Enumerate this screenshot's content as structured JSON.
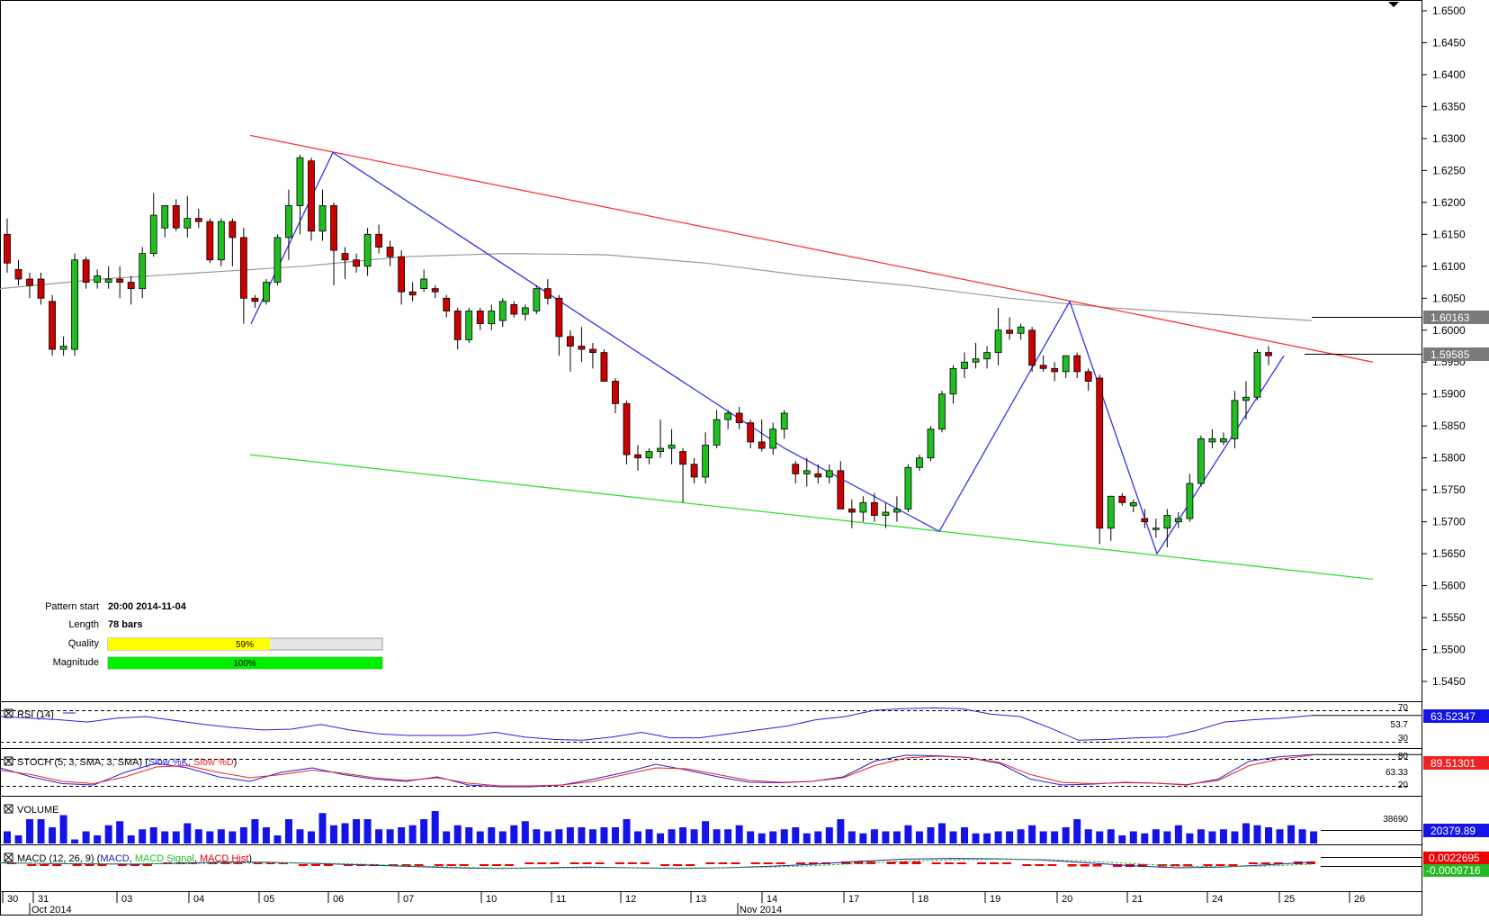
{
  "colors": {
    "bull": "#1fbf1f",
    "bear": "#cc0000",
    "resistance": "#ff3333",
    "support": "#33dd33",
    "zigzag": "#3333ee",
    "ma": "#999999",
    "price_label_bg": "#7a7a7a",
    "volume": "#1414e6",
    "macd_hist": "#ee0000",
    "rsi": "#2222dd",
    "stoch_k": "#2222dd",
    "stoch_d": "#ee2222",
    "macd_line": "#2222aa",
    "macd_signal": "#22bb22",
    "quality_fill": "#ffff00",
    "magnitude_fill": "#00ee00"
  },
  "info": {
    "pattern_start_label": "Pattern start",
    "pattern_start_value": "20:00 2014-11-04",
    "length_label": "Length",
    "length_value": "78 bars",
    "quality_label": "Quality",
    "quality_value": "59%",
    "quality_fraction": 0.59,
    "magnitude_label": "Magnitude",
    "magnitude_value": "100%",
    "magnitude_fraction": 1.0
  },
  "price_labels": {
    "ma_value": "1.60163",
    "last_value": "1.59585"
  },
  "panels": {
    "rsi": {
      "label": "RSI (14)",
      "level_high": "70",
      "level_mid": "53.7",
      "level_low": "30",
      "value": "63.52347"
    },
    "stoch": {
      "label_prefix": "STOCH (5, 3, SMA, 3, SMA) (",
      "k_label": "Slow %K",
      "sep": ", ",
      "d_label": "Slow %D",
      "suffix": ")",
      "level_high": "80",
      "level_mid": "63.33",
      "level_low": "20",
      "value": "89.51301"
    },
    "volume": {
      "label": "VOLUME",
      "axis_value": "38690",
      "value": "20379.89"
    },
    "macd": {
      "label_prefix": "MACD (12, 26, 9) (",
      "line_label": "MACD",
      "signal_label": "MACD Signal",
      "hist_label": "MACD Hist",
      "suffix": ")",
      "value1": "0.0022695",
      "value2": "-0.0009716"
    }
  },
  "chart_data": {
    "type": "candlestick",
    "instrument_axis": {
      "y_min": 1.54,
      "y_max": 1.65,
      "ticks": [
        "1.6500",
        "1.6450",
        "1.6400",
        "1.6350",
        "1.6300",
        "1.6250",
        "1.6200",
        "1.6150",
        "1.6100",
        "1.6050",
        "1.6000",
        "1.5950",
        "1.5900",
        "1.5850",
        "1.5800",
        "1.5750",
        "1.5700",
        "1.5650",
        "1.5600",
        "1.5550",
        "1.5500",
        "1.5450"
      ]
    },
    "x_day_labels": [
      "30",
      "31",
      "03",
      "04",
      "05",
      "06",
      "07",
      "10",
      "11",
      "12",
      "13",
      "14",
      "17",
      "18",
      "19",
      "20",
      "21",
      "24",
      "25",
      "26"
    ],
    "x_month_labels": [
      "Oct 2014",
      "Nov 2014"
    ],
    "candles": [
      [
        1.615,
        1.6175,
        1.609,
        1.6105
      ],
      [
        1.6095,
        1.611,
        1.607,
        1.608
      ],
      [
        1.608,
        1.609,
        1.605,
        1.607
      ],
      [
        1.608,
        1.609,
        1.604,
        1.605
      ],
      [
        1.6045,
        1.6055,
        1.596,
        1.597
      ],
      [
        1.597,
        1.599,
        1.596,
        1.5975
      ],
      [
        1.597,
        1.612,
        1.596,
        1.611
      ],
      [
        1.611,
        1.6115,
        1.6065,
        1.6075
      ],
      [
        1.6075,
        1.6095,
        1.6065,
        1.6085
      ],
      [
        1.6075,
        1.61,
        1.6065,
        1.608
      ],
      [
        1.608,
        1.61,
        1.605,
        1.6075
      ],
      [
        1.6075,
        1.6085,
        1.604,
        1.6065
      ],
      [
        1.6065,
        1.613,
        1.605,
        1.612
      ],
      [
        1.612,
        1.6215,
        1.6115,
        1.618
      ],
      [
        1.616,
        1.6195,
        1.6145,
        1.6195
      ],
      [
        1.6195,
        1.6205,
        1.6155,
        1.616
      ],
      [
        1.616,
        1.621,
        1.6145,
        1.6175
      ],
      [
        1.6175,
        1.619,
        1.616,
        1.617
      ],
      [
        1.617,
        1.6175,
        1.6105,
        1.611
      ],
      [
        1.611,
        1.6175,
        1.61,
        1.617
      ],
      [
        1.617,
        1.6175,
        1.61,
        1.6145
      ],
      [
        1.6145,
        1.616,
        1.601,
        1.605
      ],
      [
        1.605,
        1.6055,
        1.6035,
        1.6045
      ],
      [
        1.6045,
        1.608,
        1.604,
        1.6075
      ],
      [
        1.6075,
        1.615,
        1.607,
        1.6145
      ],
      [
        1.6145,
        1.622,
        1.611,
        1.6195
      ],
      [
        1.6195,
        1.6275,
        1.615,
        1.627
      ],
      [
        1.6265,
        1.627,
        1.614,
        1.6155
      ],
      [
        1.6155,
        1.622,
        1.614,
        1.6195
      ],
      [
        1.6195,
        1.62,
        1.607,
        1.6125
      ],
      [
        1.612,
        1.613,
        1.608,
        1.611
      ],
      [
        1.611,
        1.612,
        1.609,
        1.61
      ],
      [
        1.61,
        1.616,
        1.6085,
        1.615
      ],
      [
        1.615,
        1.6165,
        1.612,
        1.613
      ],
      [
        1.613,
        1.614,
        1.61,
        1.6115
      ],
      [
        1.6115,
        1.6125,
        1.604,
        1.606
      ],
      [
        1.606,
        1.6075,
        1.6045,
        1.6055
      ],
      [
        1.6065,
        1.6095,
        1.606,
        1.608
      ],
      [
        1.6065,
        1.607,
        1.605,
        1.606
      ],
      [
        1.605,
        1.6055,
        1.602,
        1.603
      ],
      [
        1.603,
        1.6035,
        1.597,
        1.5985
      ],
      [
        1.5985,
        1.6035,
        1.598,
        1.603
      ],
      [
        1.603,
        1.6035,
        1.6,
        1.601
      ],
      [
        1.601,
        1.604,
        1.6,
        1.603
      ],
      [
        1.6015,
        1.605,
        1.6005,
        1.6045
      ],
      [
        1.604,
        1.6045,
        1.602,
        1.6025
      ],
      [
        1.6025,
        1.604,
        1.6015,
        1.6035
      ],
      [
        1.603,
        1.607,
        1.6025,
        1.6065
      ],
      [
        1.6065,
        1.608,
        1.604,
        1.605
      ],
      [
        1.605,
        1.6055,
        1.596,
        1.599
      ],
      [
        1.599,
        1.6,
        1.5935,
        1.5975
      ],
      [
        1.5975,
        1.6005,
        1.595,
        1.597
      ],
      [
        1.597,
        1.598,
        1.594,
        1.5965
      ],
      [
        1.5965,
        1.597,
        1.592,
        1.592
      ],
      [
        1.592,
        1.5925,
        1.587,
        1.5885
      ],
      [
        1.5885,
        1.589,
        1.579,
        1.5805
      ],
      [
        1.5805,
        1.582,
        1.578,
        1.58
      ],
      [
        1.58,
        1.5815,
        1.579,
        1.581
      ],
      [
        1.581,
        1.586,
        1.58,
        1.5815
      ],
      [
        1.5815,
        1.5845,
        1.579,
        1.582
      ],
      [
        1.581,
        1.5815,
        1.573,
        1.579
      ],
      [
        1.579,
        1.58,
        1.576,
        1.577
      ],
      [
        1.577,
        1.584,
        1.576,
        1.582
      ],
      [
        1.582,
        1.5875,
        1.5815,
        1.586
      ],
      [
        1.586,
        1.5875,
        1.5845,
        1.587
      ],
      [
        1.587,
        1.588,
        1.5845,
        1.5855
      ],
      [
        1.5855,
        1.586,
        1.5815,
        1.5825
      ],
      [
        1.5825,
        1.586,
        1.581,
        1.5815
      ],
      [
        1.5815,
        1.5855,
        1.5805,
        1.5845
      ],
      [
        1.5845,
        1.5875,
        1.583,
        1.587
      ],
      [
        1.579,
        1.5795,
        1.576,
        1.5775
      ],
      [
        1.5775,
        1.58,
        1.5755,
        1.578
      ],
      [
        1.5775,
        1.579,
        1.576,
        1.577
      ],
      [
        1.577,
        1.579,
        1.576,
        1.578
      ],
      [
        1.578,
        1.5795,
        1.572,
        1.572
      ],
      [
        1.572,
        1.5735,
        1.569,
        1.5715
      ],
      [
        1.5715,
        1.574,
        1.57,
        1.573
      ],
      [
        1.573,
        1.5745,
        1.57,
        1.571
      ],
      [
        1.571,
        1.573,
        1.569,
        1.5715
      ],
      [
        1.5715,
        1.574,
        1.57,
        1.572
      ],
      [
        1.572,
        1.579,
        1.5715,
        1.5785
      ],
      [
        1.5785,
        1.5805,
        1.578,
        1.58
      ],
      [
        1.58,
        1.585,
        1.5795,
        1.5845
      ],
      [
        1.5845,
        1.5905,
        1.584,
        1.59
      ],
      [
        1.59,
        1.5945,
        1.5885,
        1.594
      ],
      [
        1.594,
        1.5965,
        1.5925,
        1.595
      ],
      [
        1.595,
        1.598,
        1.594,
        1.5955
      ],
      [
        1.5955,
        1.5975,
        1.594,
        1.5965
      ],
      [
        1.5965,
        1.6035,
        1.5945,
        1.6
      ],
      [
        1.6,
        1.602,
        1.5985,
        1.5995
      ],
      [
        1.5995,
        1.601,
        1.5985,
        1.6005
      ],
      [
        1.6,
        1.6005,
        1.5935,
        1.5945
      ],
      [
        1.5945,
        1.596,
        1.5935,
        1.594
      ],
      [
        1.594,
        1.595,
        1.592,
        1.5935
      ],
      [
        1.5935,
        1.596,
        1.5925,
        1.596
      ],
      [
        1.596,
        1.5965,
        1.5925,
        1.5935
      ],
      [
        1.5935,
        1.594,
        1.5905,
        1.592
      ],
      [
        1.5925,
        1.593,
        1.5665,
        1.569
      ],
      [
        1.569,
        1.574,
        1.567,
        1.574
      ],
      [
        1.574,
        1.5745,
        1.5725,
        1.573
      ],
      [
        1.5725,
        1.5735,
        1.5715,
        1.573
      ],
      [
        1.5705,
        1.572,
        1.569,
        1.57
      ],
      [
        1.569,
        1.5705,
        1.5675,
        1.569
      ],
      [
        1.569,
        1.572,
        1.566,
        1.571
      ],
      [
        1.57,
        1.5715,
        1.569,
        1.5705
      ],
      [
        1.5705,
        1.5775,
        1.57,
        1.576
      ],
      [
        1.576,
        1.5835,
        1.5755,
        1.583
      ],
      [
        1.5825,
        1.5845,
        1.5815,
        1.583
      ],
      [
        1.5825,
        1.584,
        1.582,
        1.583
      ],
      [
        1.583,
        1.5905,
        1.5815,
        1.589
      ],
      [
        1.589,
        1.592,
        1.586,
        1.5895
      ],
      [
        1.5895,
        1.597,
        1.589,
        1.5965
      ],
      [
        1.5965,
        1.5975,
        1.5945,
        1.596
      ]
    ],
    "resistance_line": {
      "x": [
        0.0,
        1.0
      ],
      "y": [
        1.6305,
        1.595
      ]
    },
    "support_line": {
      "x": [
        0.0,
        1.0
      ],
      "y": [
        1.5805,
        1.561
      ]
    },
    "moving_average": [
      1.6065,
      1.608,
      1.609,
      1.61,
      1.6115,
      1.612,
      1.6118,
      1.6105,
      1.6085,
      1.607,
      1.605,
      1.6035,
      1.6025,
      1.6015
    ],
    "zigzag_pattern": {
      "x": [
        "05",
        "06",
        "14",
        "18",
        "20",
        "21",
        "25"
      ],
      "y": [
        1.601,
        1.6278,
        1.5815,
        1.5685,
        1.6045,
        1.565,
        1.596
      ]
    },
    "rsi": [
      62,
      60,
      58,
      55,
      60,
      62,
      57,
      52,
      48,
      45,
      46,
      52,
      45,
      40,
      38,
      38,
      38,
      42,
      36,
      33,
      32,
      36,
      42,
      35,
      35,
      40,
      45,
      50,
      58,
      62,
      70,
      72,
      73,
      72,
      65,
      62,
      48,
      32,
      33,
      35,
      36,
      44,
      55,
      58,
      60,
      63.5
    ],
    "stoch_k": [
      60,
      40,
      25,
      22,
      50,
      70,
      60,
      40,
      30,
      50,
      60,
      45,
      35,
      30,
      40,
      22,
      18,
      18,
      22,
      35,
      50,
      68,
      55,
      40,
      28,
      27,
      30,
      40,
      75,
      88,
      87,
      83,
      70,
      35,
      22,
      24,
      28,
      26,
      22,
      35,
      75,
      85,
      89.5
    ],
    "stoch_d": [
      55,
      45,
      30,
      25,
      40,
      62,
      65,
      50,
      38,
      45,
      55,
      48,
      38,
      32,
      38,
      26,
      20,
      20,
      22,
      30,
      45,
      60,
      58,
      45,
      32,
      28,
      30,
      38,
      65,
      82,
      86,
      83,
      72,
      45,
      28,
      25,
      27,
      26,
      23,
      32,
      65,
      80,
      88
    ],
    "volume": [
      0.3,
      0.2,
      0.6,
      0.6,
      0.4,
      0.7,
      0.1,
      0.3,
      0.2,
      0.45,
      0.55,
      0.2,
      0.35,
      0.4,
      0.3,
      0.3,
      0.5,
      0.35,
      0.3,
      0.35,
      0.3,
      0.4,
      0.6,
      0.4,
      0.2,
      0.6,
      0.35,
      0.3,
      0.75,
      0.45,
      0.5,
      0.6,
      0.6,
      0.35,
      0.35,
      0.4,
      0.45,
      0.6,
      0.8,
      0.3,
      0.45,
      0.4,
      0.3,
      0.4,
      0.3,
      0.45,
      0.55,
      0.35,
      0.3,
      0.35,
      0.4,
      0.4,
      0.35,
      0.4,
      0.4,
      0.6,
      0.3,
      0.35,
      0.25,
      0.35,
      0.4,
      0.35,
      0.55,
      0.35,
      0.35,
      0.45,
      0.3,
      0.25,
      0.3,
      0.35,
      0.4,
      0.25,
      0.3,
      0.4,
      0.6,
      0.3,
      0.25,
      0.35,
      0.3,
      0.3,
      0.45,
      0.3,
      0.4,
      0.5,
      0.3,
      0.4,
      0.25,
      0.25,
      0.3,
      0.3,
      0.35,
      0.45,
      0.3,
      0.3,
      0.4,
      0.6,
      0.35,
      0.3,
      0.35,
      0.2,
      0.3,
      0.25,
      0.35,
      0.3,
      0.45,
      0.25,
      0.35,
      0.3,
      0.35,
      0.3,
      0.5,
      0.45,
      0.4,
      0.35,
      0.45,
      0.35,
      0.3
    ],
    "macd": [
      0.2,
      0.1,
      0.05,
      0.0,
      0.15,
      0.3,
      0.25,
      0.1,
      -0.1,
      -0.3,
      -0.5,
      -0.6,
      -0.5,
      -0.4,
      -0.5,
      -0.6,
      -0.5,
      -0.3,
      0.0,
      0.4,
      0.7,
      0.8,
      0.75,
      0.6,
      0.2,
      -0.2,
      -0.5,
      -0.4,
      -0.1,
      0.3
    ],
    "macd_signal": [
      0.15,
      0.12,
      0.08,
      0.05,
      0.08,
      0.15,
      0.2,
      0.15,
      0.0,
      -0.2,
      -0.4,
      -0.55,
      -0.55,
      -0.5,
      -0.5,
      -0.55,
      -0.5,
      -0.4,
      -0.2,
      0.1,
      0.4,
      0.6,
      0.7,
      0.65,
      0.45,
      0.1,
      -0.25,
      -0.35,
      -0.25,
      0.0
    ],
    "macd_hist": [
      0.05,
      -0.02,
      -0.03,
      -0.05,
      0.07,
      0.15,
      0.05,
      -0.05,
      -0.1,
      -0.1,
      -0.1,
      -0.05,
      0.05,
      0.1,
      0.0,
      -0.05,
      0.0,
      0.1,
      0.2,
      0.3,
      0.3,
      0.2,
      0.05,
      -0.05,
      -0.25,
      -0.3,
      -0.25,
      -0.05,
      0.15,
      0.3
    ]
  }
}
